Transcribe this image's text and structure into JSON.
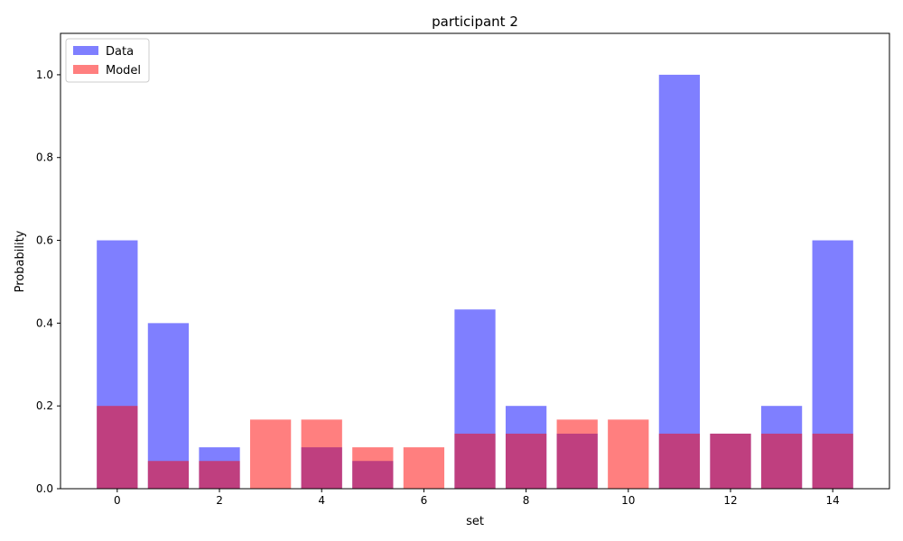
{
  "chart_data": {
    "type": "bar",
    "title": "participant 2",
    "xlabel": "set",
    "ylabel": "Probability",
    "x": [
      0,
      1,
      2,
      3,
      4,
      5,
      6,
      7,
      8,
      9,
      10,
      11,
      12,
      13,
      14
    ],
    "xlim": [
      -1.11,
      15.11
    ],
    "ylim": [
      0,
      1.1
    ],
    "xticks": [
      0,
      2,
      4,
      6,
      8,
      10,
      12,
      14
    ],
    "yticks": [
      0.0,
      0.2,
      0.4,
      0.6,
      0.8,
      1.0
    ],
    "xtick_labels": [
      "0",
      "2",
      "4",
      "6",
      "8",
      "10",
      "12",
      "14"
    ],
    "ytick_labels": [
      "0.0",
      "0.2",
      "0.4",
      "0.6",
      "0.8",
      "1.0"
    ],
    "grid": false,
    "legend_position": "upper-left",
    "series": [
      {
        "name": "Data",
        "color": "#0000ff",
        "alpha": 0.5,
        "values": [
          0.6,
          0.4,
          0.1,
          0.0,
          0.1,
          0.067,
          0.0,
          0.433,
          0.2,
          0.133,
          0.0,
          1.0,
          0.133,
          0.2,
          0.6
        ]
      },
      {
        "name": "Model",
        "color": "#ff0000",
        "alpha": 0.5,
        "values": [
          0.2,
          0.067,
          0.067,
          0.167,
          0.167,
          0.1,
          0.1,
          0.133,
          0.133,
          0.167,
          0.167,
          0.133,
          0.133,
          0.133,
          0.133
        ]
      }
    ]
  }
}
